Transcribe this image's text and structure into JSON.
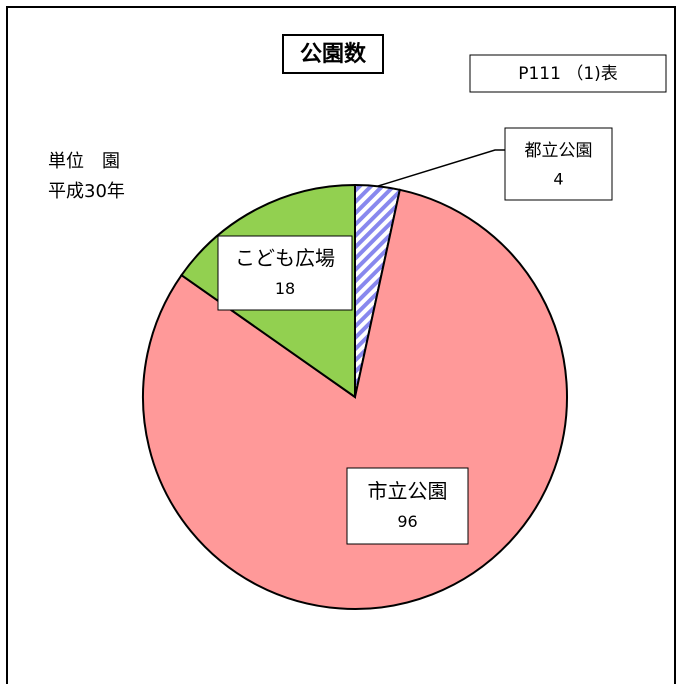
{
  "chart_data": {
    "type": "pie",
    "title": "公園数",
    "annotations": [
      "P111 （1)表",
      "単位　園",
      "平成30年"
    ],
    "categories": [
      "都立公園",
      "市立公園",
      "こども広場"
    ],
    "values": [
      4,
      96,
      18
    ],
    "colors": [
      "#8888ee",
      "#ff9999",
      "#92d050"
    ],
    "hatched": [
      true,
      false,
      false
    ]
  }
}
